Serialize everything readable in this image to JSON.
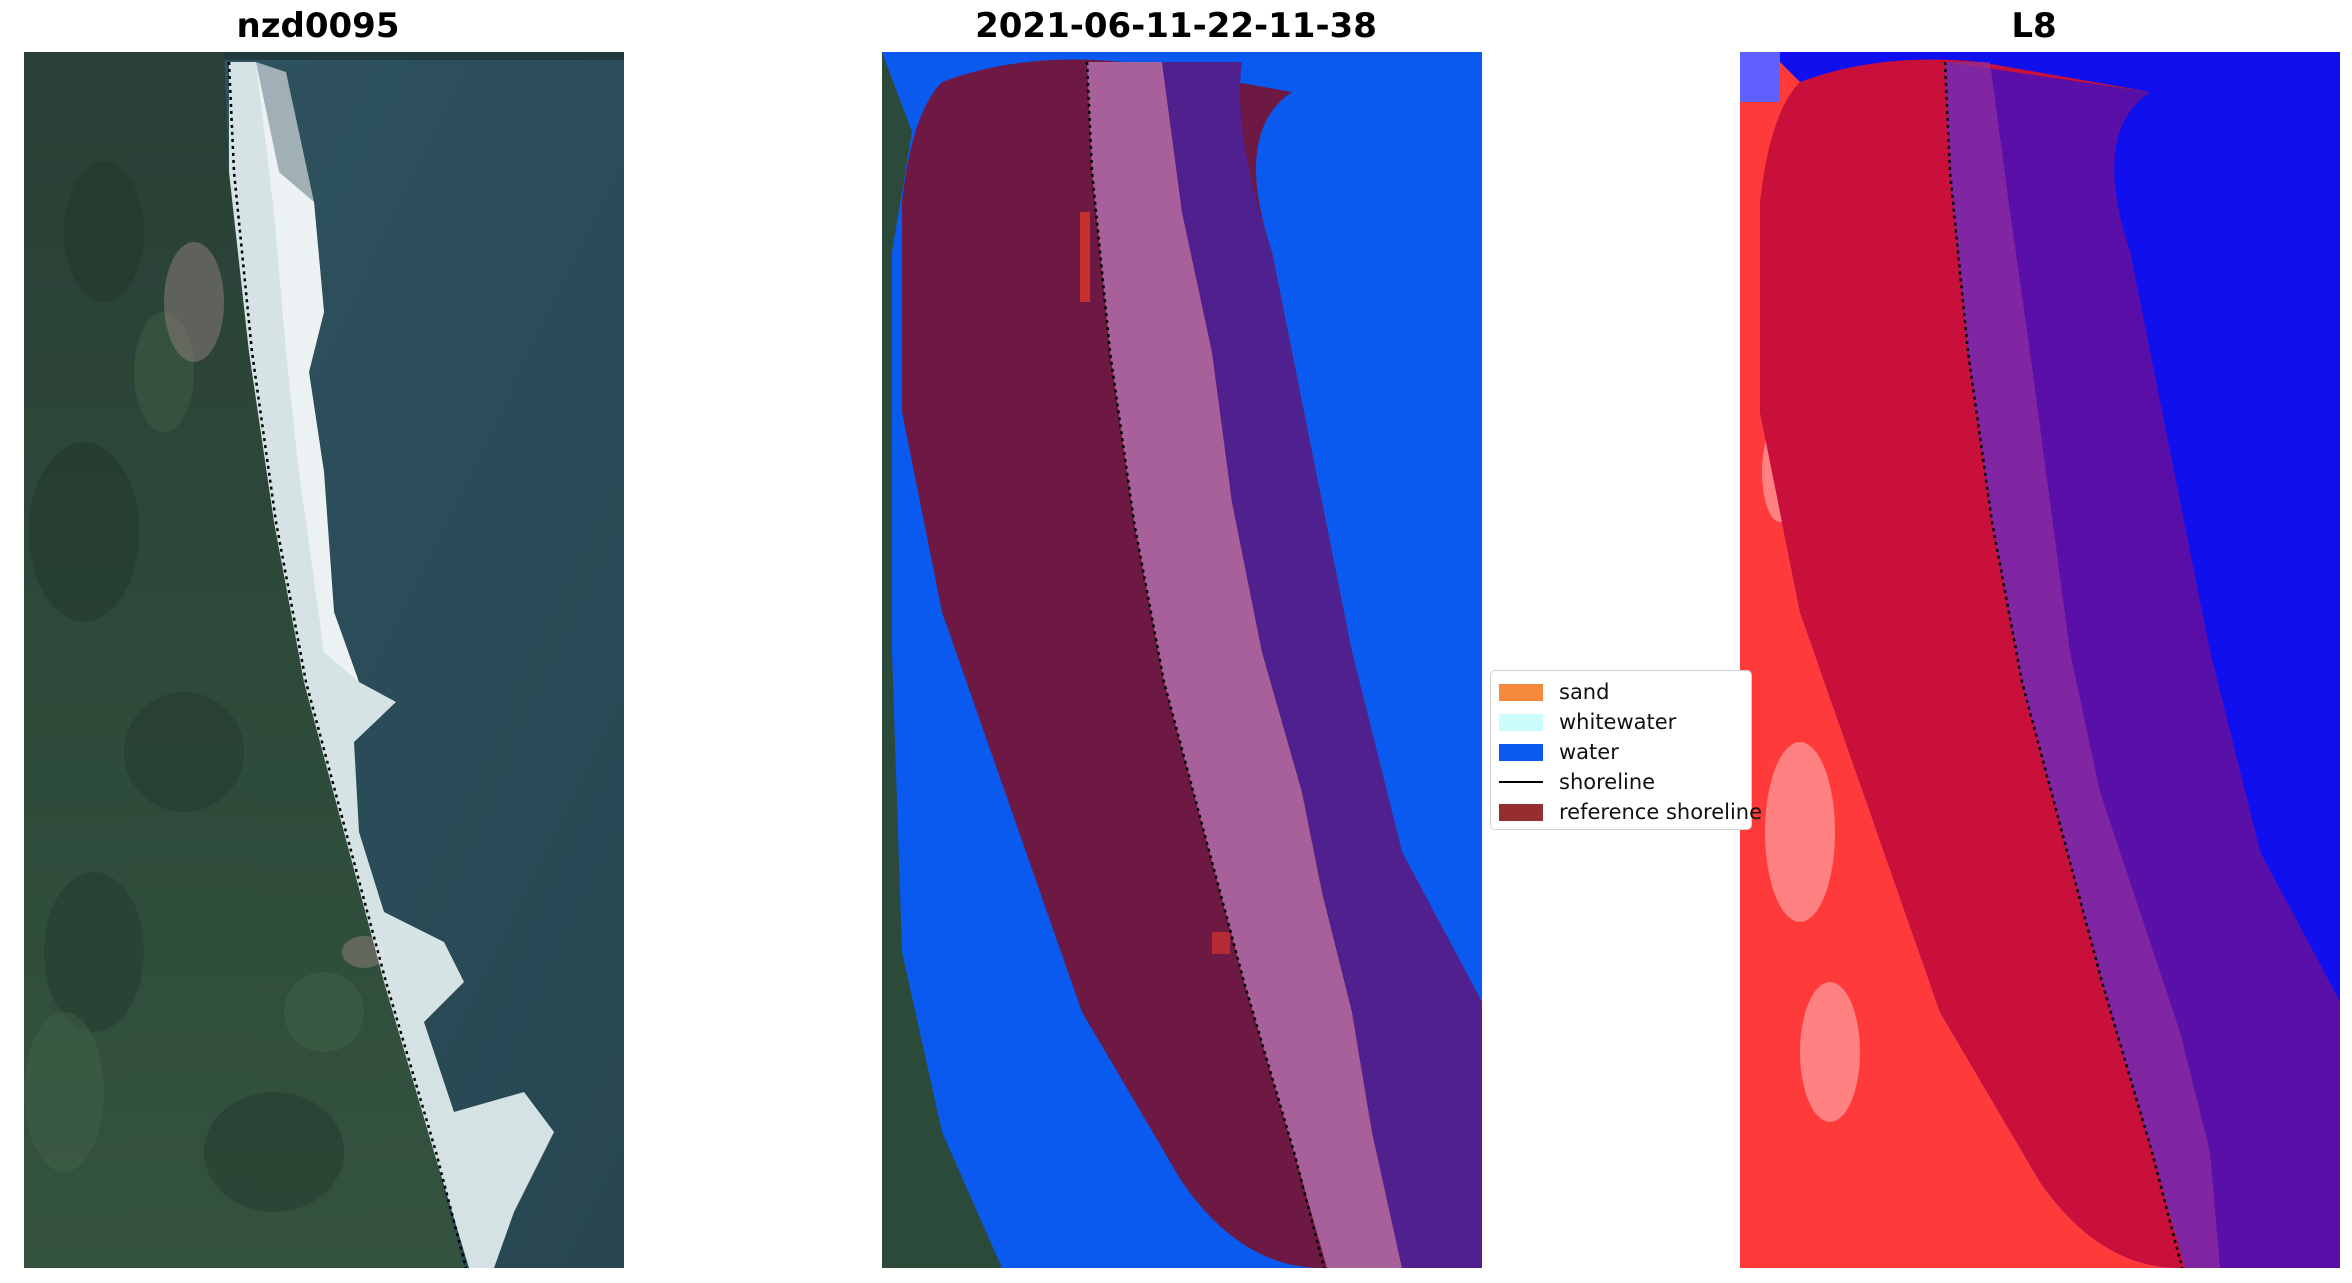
{
  "panels": [
    {
      "title": "nzd0095"
    },
    {
      "title": "2021-06-11-22-11-38"
    },
    {
      "title": "L8"
    }
  ],
  "legend": {
    "items": [
      {
        "label": "sand",
        "color": "#f5883a",
        "kind": "patch"
      },
      {
        "label": "whitewater",
        "color": "#ccfcfc",
        "kind": "patch"
      },
      {
        "label": "water",
        "color": "#0a5af0",
        "kind": "patch"
      },
      {
        "label": "shoreline",
        "color": "#000000",
        "kind": "line"
      },
      {
        "label": "reference shoreline",
        "color": "#962e30",
        "kind": "patch"
      }
    ]
  },
  "colors": {
    "land": "#2b4a3a",
    "sea": "#2c4d5a",
    "surf": "#e4f0f0",
    "buffer": "#6e1844",
    "water_class": "#0a5af0",
    "whitewater_class": "#a8609a",
    "sea_class": "#50208e",
    "index_land": "#ff3030",
    "index_buffer": "#c8103a",
    "index_sea": "#5a10a8",
    "index_water": "#1010ee"
  }
}
